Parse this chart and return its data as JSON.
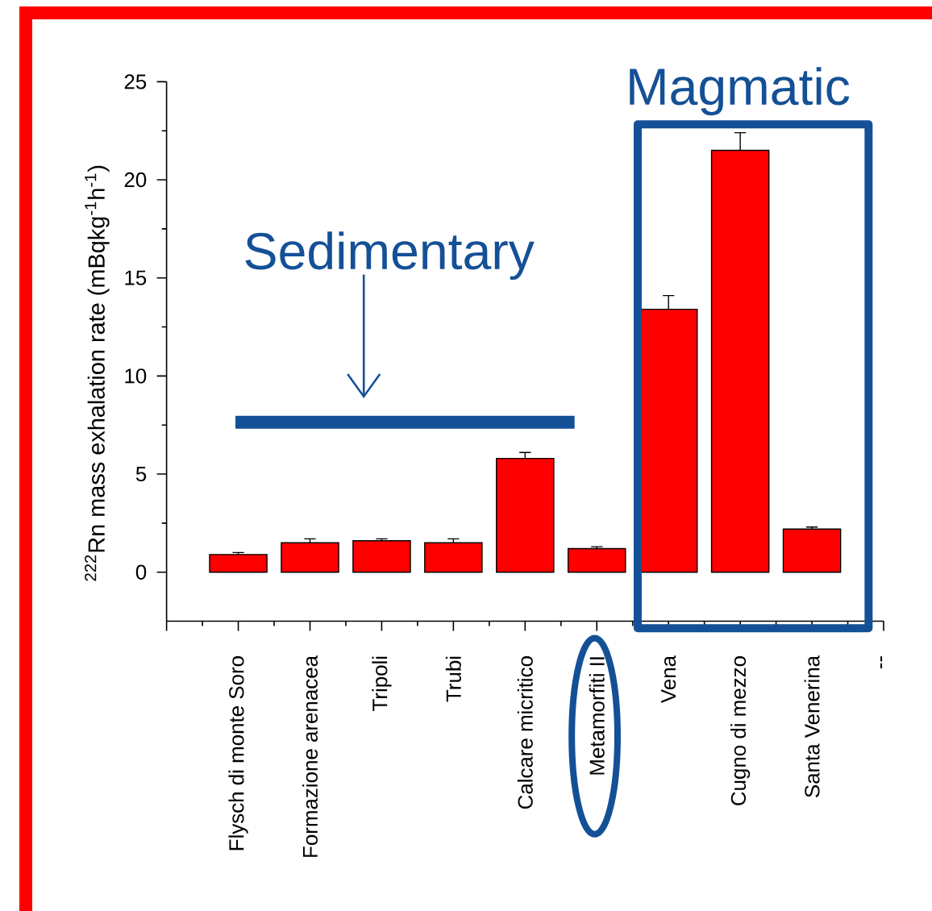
{
  "chart_data": {
    "type": "bar",
    "ylabel": "$^{222}$Rn mass exhalation rate (mBqkg$^{-1}$h$^{-1}$)",
    "categories": [
      "Flysch di monte Soro",
      "Formazione arenacea",
      "Tripoli",
      "Trubi",
      "Calcare micritico",
      "Metamorfiti II",
      "Vena",
      "Cugno di mezzo",
      "Santa Venerina",
      "--"
    ],
    "values": [
      0.9,
      1.5,
      1.6,
      1.5,
      5.8,
      1.2,
      13.4,
      21.5,
      2.2,
      null
    ],
    "errors": [
      [
        0.9,
        1.0
      ],
      [
        1.5,
        1.7
      ],
      [
        1.6,
        1.7
      ],
      [
        1.5,
        1.7
      ],
      [
        5.8,
        6.1
      ],
      [
        1.2,
        1.3
      ],
      [
        13.4,
        14.1
      ],
      [
        21.5,
        22.4
      ],
      [
        2.2,
        2.3
      ],
      null
    ],
    "color": "#ff0000",
    "ylim": [
      -2.5,
      25
    ],
    "yticks": [
      0,
      5,
      10,
      15,
      20,
      25
    ],
    "annotations": [
      "Sedimentary",
      "Magmatic"
    ]
  }
}
